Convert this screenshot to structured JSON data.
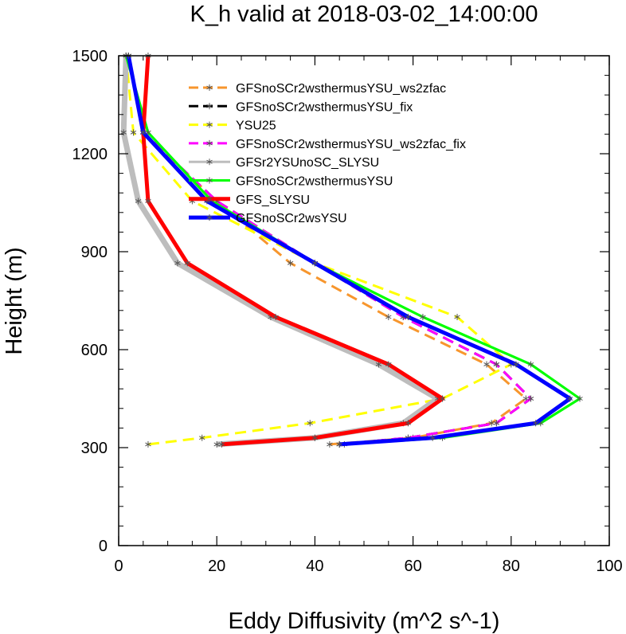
{
  "chart_data": {
    "type": "line",
    "title": "K_h valid at 2018-03-02_14:00:00",
    "xlabel": "Eddy Diffusivity (m^2 s^-1)",
    "ylabel": "Height (m)",
    "xlim": [
      0,
      100
    ],
    "ylim": [
      0,
      1500
    ],
    "xticks": [
      "0",
      "20",
      "40",
      "60",
      "80",
      "100"
    ],
    "yticks": [
      "0",
      "300",
      "600",
      "900",
      "1200",
      "1500"
    ],
    "legend_position": "top-center",
    "series": [
      {
        "name": "GFSnoSCr2wsthermusYSU_ws2zfac",
        "color": "#f7962d",
        "dash": "dashed",
        "x": [
          43,
          60,
          76,
          83,
          75,
          55,
          35,
          20,
          5,
          2
        ],
        "y": [
          310,
          330,
          375,
          450,
          555,
          700,
          865,
          1055,
          1265,
          1500
        ]
      },
      {
        "name": "GFSnoSCr2wsthermusYSU_fix",
        "color": "#000000",
        "dash": "dashed",
        "x": [
          45,
          59,
          77,
          84,
          77,
          58,
          40,
          20,
          5,
          2
        ],
        "y": [
          310,
          330,
          375,
          450,
          555,
          700,
          865,
          1055,
          1265,
          1500
        ]
      },
      {
        "name": "YSU25",
        "color": "#ffff00",
        "dash": "dashed",
        "x": [
          6,
          17,
          39,
          66,
          80,
          69,
          40,
          15,
          3,
          1.5
        ],
        "y": [
          310,
          330,
          375,
          450,
          555,
          700,
          865,
          1055,
          1265,
          1500
        ]
      },
      {
        "name": "GFSnoSCr2wsthermusYSU_ws2zfac_fix",
        "color": "#ff00ff",
        "dash": "dashed",
        "x": [
          45,
          59,
          77,
          84,
          77,
          58,
          40,
          20,
          5,
          2
        ],
        "y": [
          310,
          330,
          375,
          450,
          555,
          700,
          865,
          1055,
          1265,
          1500
        ]
      },
      {
        "name": "GFSr2YSUnoSC_SLYSU",
        "color": "#bdbdbd",
        "dash": "solid",
        "x": [
          20,
          40,
          58,
          65,
          53,
          31,
          12,
          4,
          1,
          1.5
        ],
        "y": [
          310,
          330,
          375,
          450,
          555,
          700,
          865,
          1055,
          1265,
          1500
        ]
      },
      {
        "name": "GFSnoSCr2wsthermusYSU",
        "color": "#00ff00",
        "dash": "solid",
        "x": [
          46,
          66,
          86,
          94,
          84,
          62,
          40,
          19,
          6,
          1.5
        ],
        "y": [
          310,
          330,
          375,
          450,
          555,
          700,
          865,
          1055,
          1265,
          1500
        ]
      },
      {
        "name": "GFS_SLYSU",
        "color": "#ff0000",
        "dash": "solid",
        "x": [
          21,
          40,
          59,
          66,
          55,
          32,
          14,
          6,
          5,
          6
        ],
        "y": [
          310,
          330,
          375,
          450,
          555,
          700,
          865,
          1055,
          1265,
          1500
        ]
      },
      {
        "name": "GFSnoSCr2wsYSU",
        "color": "#0000ff",
        "dash": "solid",
        "x": [
          45,
          64,
          85,
          92,
          81,
          59,
          40,
          18,
          5,
          2
        ],
        "y": [
          310,
          330,
          375,
          450,
          555,
          700,
          865,
          1055,
          1265,
          1500
        ]
      }
    ]
  }
}
